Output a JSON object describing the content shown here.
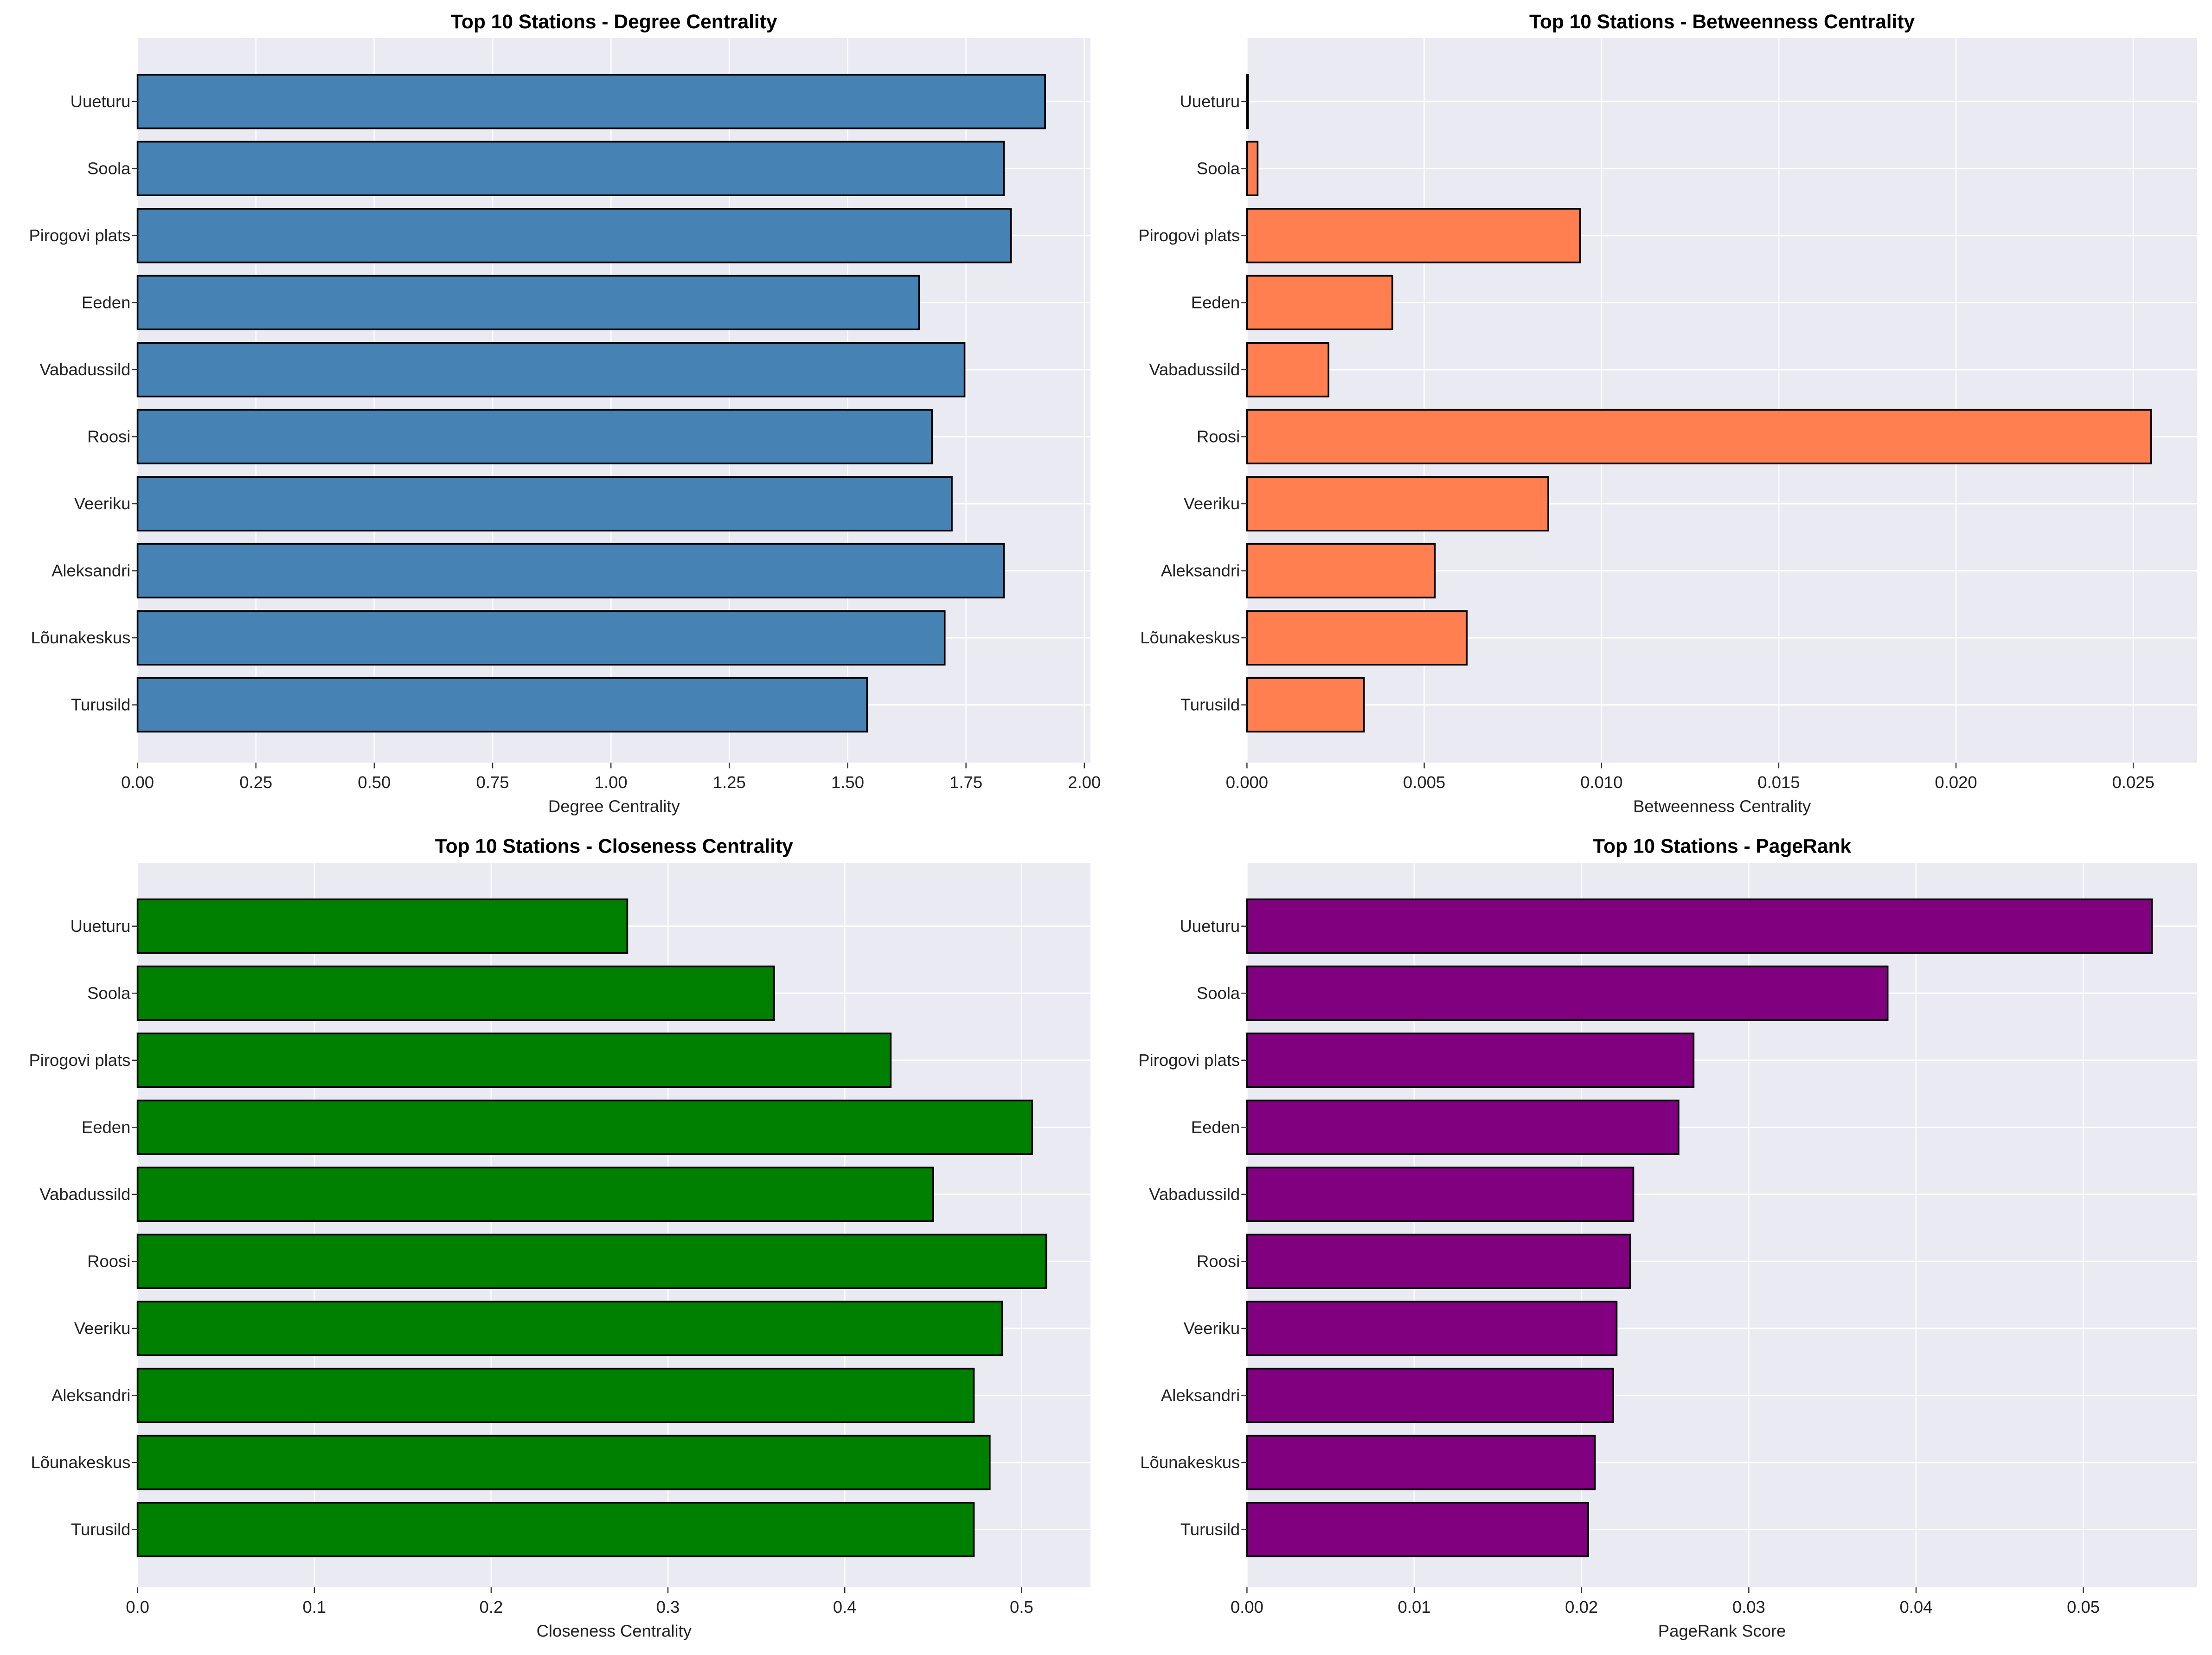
{
  "chart_data": [
    {
      "type": "bar",
      "orientation": "horizontal",
      "title": "Top 10 Stations - Degree Centrality",
      "xlabel": "Degree Centrality",
      "ylabel": "",
      "categories": [
        "Uueturu",
        "Soola",
        "Pirogovi plats",
        "Eeden",
        "Vabadussild",
        "Roosi",
        "Veeriku",
        "Aleksandri",
        "Lõunakeskus",
        "Turusild"
      ],
      "values": [
        1.917,
        1.83,
        1.845,
        1.651,
        1.747,
        1.678,
        1.72,
        1.83,
        1.705,
        1.541
      ],
      "xlim": [
        0,
        2.013
      ],
      "xticks": [
        "0.00",
        "0.25",
        "0.50",
        "0.75",
        "1.00",
        "1.25",
        "1.50",
        "1.75",
        "2.00"
      ],
      "xtick_values": [
        0,
        0.25,
        0.5,
        0.75,
        1.0,
        1.25,
        1.5,
        1.75,
        2.0
      ],
      "color": "#4682b4",
      "grid": true
    },
    {
      "type": "bar",
      "orientation": "horizontal",
      "title": "Top 10 Stations - Betweenness Centrality",
      "xlabel": "Betweenness Centrality",
      "ylabel": "",
      "categories": [
        "Uueturu",
        "Soola",
        "Pirogovi plats",
        "Eeden",
        "Vabadussild",
        "Roosi",
        "Veeriku",
        "Aleksandri",
        "Lõunakeskus",
        "Turusild"
      ],
      "values": [
        3e-05,
        0.0003,
        0.0094,
        0.0041,
        0.0023,
        0.0255,
        0.0085,
        0.0053,
        0.0062,
        0.0033
      ],
      "xlim": [
        0,
        0.0268
      ],
      "xticks": [
        "0.000",
        "0.005",
        "0.010",
        "0.015",
        "0.020",
        "0.025"
      ],
      "xtick_values": [
        0,
        0.005,
        0.01,
        0.015,
        0.02,
        0.025
      ],
      "color": "#ff7f50",
      "grid": true
    },
    {
      "type": "bar",
      "orientation": "horizontal",
      "title": "Top 10 Stations - Closeness Centrality",
      "xlabel": "Closeness Centrality",
      "ylabel": "",
      "categories": [
        "Uueturu",
        "Soola",
        "Pirogovi plats",
        "Eeden",
        "Vabadussild",
        "Roosi",
        "Veeriku",
        "Aleksandri",
        "Lõunakeskus",
        "Turusild"
      ],
      "values": [
        0.277,
        0.36,
        0.426,
        0.506,
        0.45,
        0.514,
        0.489,
        0.473,
        0.482,
        0.473
      ],
      "xlim": [
        0,
        0.539
      ],
      "xticks": [
        "0.0",
        "0.1",
        "0.2",
        "0.3",
        "0.4",
        "0.5"
      ],
      "xtick_values": [
        0,
        0.1,
        0.2,
        0.3,
        0.4,
        0.5
      ],
      "color": "#008000",
      "grid": true
    },
    {
      "type": "bar",
      "orientation": "horizontal",
      "title": "Top 10 Stations - PageRank",
      "xlabel": "PageRank Score",
      "ylabel": "",
      "categories": [
        "Uueturu",
        "Soola",
        "Pirogovi plats",
        "Eeden",
        "Vabadussild",
        "Roosi",
        "Veeriku",
        "Aleksandri",
        "Lõunakeskus",
        "Turusild"
      ],
      "values": [
        0.0541,
        0.0383,
        0.0267,
        0.0258,
        0.0231,
        0.0229,
        0.0221,
        0.0219,
        0.0208,
        0.0204
      ],
      "xlim": [
        0,
        0.0568
      ],
      "xticks": [
        "0.00",
        "0.01",
        "0.02",
        "0.03",
        "0.04",
        "0.05"
      ],
      "xtick_values": [
        0,
        0.01,
        0.02,
        0.03,
        0.04,
        0.05
      ],
      "color": "#800080",
      "grid": true
    }
  ]
}
